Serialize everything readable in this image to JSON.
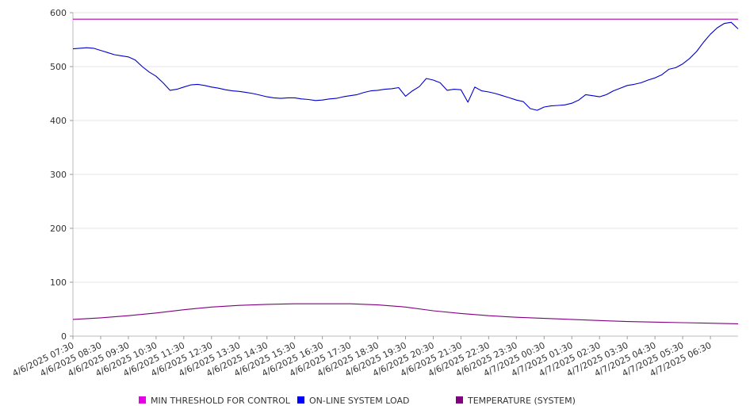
{
  "chart_data": {
    "type": "line",
    "title": "",
    "xlabel": "",
    "ylabel": "",
    "ylim": [
      0,
      600
    ],
    "yticks": [
      0,
      100,
      200,
      300,
      400,
      500,
      600
    ],
    "grid": true,
    "legend_position": "bottom",
    "x_tick_labels": [
      "4/6/2025 07:30",
      "4/6/2025 08:30",
      "4/6/2025 09:30",
      "4/6/2025 10:30",
      "4/6/2025 11:30",
      "4/6/2025 12:30",
      "4/6/2025 13:30",
      "4/6/2025 14:30",
      "4/6/2025 15:30",
      "4/6/2025 16:30",
      "4/6/2025 17:30",
      "4/6/2025 18:30",
      "4/6/2025 19:30",
      "4/6/2025 20:30",
      "4/6/2025 21:30",
      "4/6/2025 22:30",
      "4/6/2025 23:30",
      "4/7/2025 00:30",
      "4/7/2025 01:30",
      "4/7/2025 02:30",
      "4/7/2025 03:30",
      "4/7/2025 04:30",
      "4/7/2025 05:30",
      "4/7/2025 06:30"
    ],
    "x_range": [
      "4/6/2025 07:30",
      "4/7/2025 07:30"
    ],
    "series": [
      {
        "name": "MIN THRESHOLD FOR CONTROL",
        "color": "#e600e6",
        "line_color": "#b000b0",
        "points": [
          [
            "4/6/2025 07:30",
            588
          ],
          [
            "4/7/2025 07:30",
            588
          ]
        ]
      },
      {
        "name": "ON-LINE SYSTEM LOAD",
        "color": "#0000ff",
        "line_color": "#0000cc",
        "points": [
          [
            "4/6/2025 07:30",
            533
          ],
          [
            "4/6/2025 08:00",
            535
          ],
          [
            "4/6/2025 08:15",
            534
          ],
          [
            "4/6/2025 08:30",
            530
          ],
          [
            "4/6/2025 08:45",
            526
          ],
          [
            "4/6/2025 09:00",
            522
          ],
          [
            "4/6/2025 09:15",
            520
          ],
          [
            "4/6/2025 09:30",
            518
          ],
          [
            "4/6/2025 09:45",
            512
          ],
          [
            "4/6/2025 10:00",
            500
          ],
          [
            "4/6/2025 10:15",
            490
          ],
          [
            "4/6/2025 10:30",
            482
          ],
          [
            "4/6/2025 10:45",
            470
          ],
          [
            "4/6/2025 11:00",
            456
          ],
          [
            "4/6/2025 11:15",
            458
          ],
          [
            "4/6/2025 11:30",
            462
          ],
          [
            "4/6/2025 11:45",
            466
          ],
          [
            "4/6/2025 12:00",
            467
          ],
          [
            "4/6/2025 12:15",
            465
          ],
          [
            "4/6/2025 12:30",
            462
          ],
          [
            "4/6/2025 12:45",
            460
          ],
          [
            "4/6/2025 13:00",
            457
          ],
          [
            "4/6/2025 13:15",
            455
          ],
          [
            "4/6/2025 13:30",
            454
          ],
          [
            "4/6/2025 13:45",
            452
          ],
          [
            "4/6/2025 14:00",
            450
          ],
          [
            "4/6/2025 14:15",
            447
          ],
          [
            "4/6/2025 14:30",
            444
          ],
          [
            "4/6/2025 14:45",
            442
          ],
          [
            "4/6/2025 15:00",
            441
          ],
          [
            "4/6/2025 15:15",
            442
          ],
          [
            "4/6/2025 15:30",
            442
          ],
          [
            "4/6/2025 15:45",
            440
          ],
          [
            "4/6/2025 16:00",
            439
          ],
          [
            "4/6/2025 16:15",
            437
          ],
          [
            "4/6/2025 16:30",
            438
          ],
          [
            "4/6/2025 16:45",
            440
          ],
          [
            "4/6/2025 17:00",
            441
          ],
          [
            "4/6/2025 17:15",
            444
          ],
          [
            "4/6/2025 17:30",
            446
          ],
          [
            "4/6/2025 17:45",
            448
          ],
          [
            "4/6/2025 18:00",
            452
          ],
          [
            "4/6/2025 18:15",
            455
          ],
          [
            "4/6/2025 18:30",
            456
          ],
          [
            "4/6/2025 18:45",
            458
          ],
          [
            "4/6/2025 19:00",
            459
          ],
          [
            "4/6/2025 19:15",
            461
          ],
          [
            "4/6/2025 19:30",
            445
          ],
          [
            "4/6/2025 19:45",
            455
          ],
          [
            "4/6/2025 20:00",
            463
          ],
          [
            "4/6/2025 20:15",
            478
          ],
          [
            "4/6/2025 20:30",
            475
          ],
          [
            "4/6/2025 20:45",
            470
          ],
          [
            "4/6/2025 21:00",
            456
          ],
          [
            "4/6/2025 21:15",
            458
          ],
          [
            "4/6/2025 21:30",
            457
          ],
          [
            "4/6/2025 21:45",
            434
          ],
          [
            "4/6/2025 22:00",
            462
          ],
          [
            "4/6/2025 22:15",
            455
          ],
          [
            "4/6/2025 22:30",
            453
          ],
          [
            "4/6/2025 22:45",
            450
          ],
          [
            "4/6/2025 23:00",
            446
          ],
          [
            "4/6/2025 23:15",
            442
          ],
          [
            "4/6/2025 23:30",
            438
          ],
          [
            "4/6/2025 23:45",
            435
          ],
          [
            "4/7/2025 00:00",
            422
          ],
          [
            "4/7/2025 00:15",
            419
          ],
          [
            "4/7/2025 00:30",
            425
          ],
          [
            "4/7/2025 00:45",
            427
          ],
          [
            "4/7/2025 01:00",
            428
          ],
          [
            "4/7/2025 01:15",
            429
          ],
          [
            "4/7/2025 01:30",
            432
          ],
          [
            "4/7/2025 01:45",
            438
          ],
          [
            "4/7/2025 02:00",
            448
          ],
          [
            "4/7/2025 02:15",
            446
          ],
          [
            "4/7/2025 02:30",
            444
          ],
          [
            "4/7/2025 02:45",
            448
          ],
          [
            "4/7/2025 03:00",
            455
          ],
          [
            "4/7/2025 03:15",
            460
          ],
          [
            "4/7/2025 03:30",
            465
          ],
          [
            "4/7/2025 03:45",
            467
          ],
          [
            "4/7/2025 04:00",
            470
          ],
          [
            "4/7/2025 04:15",
            475
          ],
          [
            "4/7/2025 04:30",
            479
          ],
          [
            "4/7/2025 04:45",
            485
          ],
          [
            "4/7/2025 05:00",
            495
          ],
          [
            "4/7/2025 05:15",
            498
          ],
          [
            "4/7/2025 05:30",
            505
          ],
          [
            "4/7/2025 05:45",
            515
          ],
          [
            "4/7/2025 06:00",
            528
          ],
          [
            "4/7/2025 06:15",
            545
          ],
          [
            "4/7/2025 06:30",
            560
          ],
          [
            "4/7/2025 06:45",
            572
          ],
          [
            "4/7/2025 07:00",
            580
          ],
          [
            "4/7/2025 07:15",
            582
          ],
          [
            "4/7/2025 07:30",
            570
          ]
        ]
      },
      {
        "name": "TEMPERATURE (SYSTEM)",
        "color": "#800080",
        "line_color": "#800080",
        "points": [
          [
            "4/6/2025 07:30",
            31
          ],
          [
            "4/6/2025 08:30",
            34
          ],
          [
            "4/6/2025 09:30",
            38
          ],
          [
            "4/6/2025 10:30",
            43
          ],
          [
            "4/6/2025 11:30",
            49
          ],
          [
            "4/6/2025 12:30",
            54
          ],
          [
            "4/6/2025 13:30",
            57
          ],
          [
            "4/6/2025 14:30",
            59
          ],
          [
            "4/6/2025 15:30",
            60
          ],
          [
            "4/6/2025 16:30",
            60
          ],
          [
            "4/6/2025 17:30",
            60
          ],
          [
            "4/6/2025 18:30",
            58
          ],
          [
            "4/6/2025 19:30",
            54
          ],
          [
            "4/6/2025 20:30",
            47
          ],
          [
            "4/6/2025 21:30",
            42
          ],
          [
            "4/6/2025 22:30",
            38
          ],
          [
            "4/6/2025 23:30",
            35
          ],
          [
            "4/7/2025 00:30",
            33
          ],
          [
            "4/7/2025 01:30",
            31
          ],
          [
            "4/7/2025 02:30",
            29
          ],
          [
            "4/7/2025 03:30",
            27
          ],
          [
            "4/7/2025 04:30",
            26
          ],
          [
            "4/7/2025 05:30",
            25
          ],
          [
            "4/7/2025 06:30",
            24
          ],
          [
            "4/7/2025 07:30",
            23
          ]
        ]
      }
    ]
  }
}
